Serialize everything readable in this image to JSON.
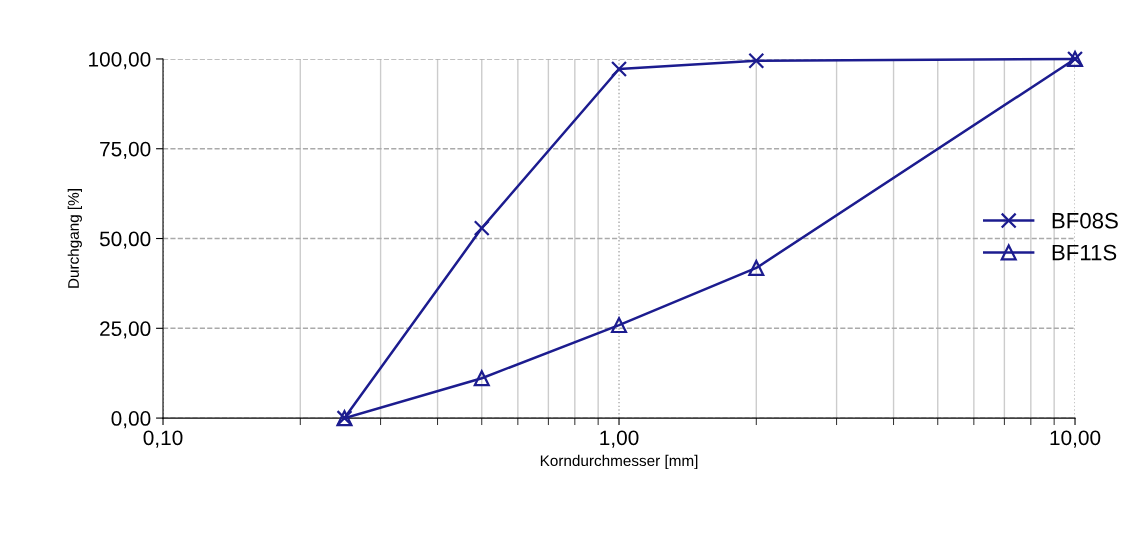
{
  "chart_data": {
    "type": "line",
    "xlabel": "Korndurchmesser [mm]",
    "ylabel": "Durchgang [%]",
    "log": "x",
    "x": [
      0.25,
      0.5,
      1.0,
      2.0,
      10.0
    ],
    "series": [
      {
        "name": "BF08S",
        "color": "#1c1c8f",
        "marker": "cross",
        "values": [
          0,
          52.9,
          97.2,
          99.5,
          100
        ]
      },
      {
        "name": "BF11S",
        "color": "#1c1c8f",
        "marker": "triangle",
        "values": [
          0,
          11.1,
          25.9,
          41.8,
          100
        ]
      }
    ],
    "xlim": [
      0.1,
      10
    ],
    "xticks": [
      {
        "value": 0.1,
        "label": "0,10"
      },
      {
        "value": 1,
        "label": "1,00"
      },
      {
        "value": 10,
        "label": "10,00"
      }
    ],
    "ylim": [
      0,
      100
    ],
    "yticks": [
      {
        "value": 0,
        "label": "0,00"
      },
      {
        "value": 25,
        "label": "25,00"
      },
      {
        "value": 50,
        "label": "50,00"
      },
      {
        "value": 75,
        "label": "75,00"
      },
      {
        "value": 100,
        "label": "100,00"
      }
    ],
    "grid": true,
    "legend": "right",
    "line_style": "solid"
  }
}
